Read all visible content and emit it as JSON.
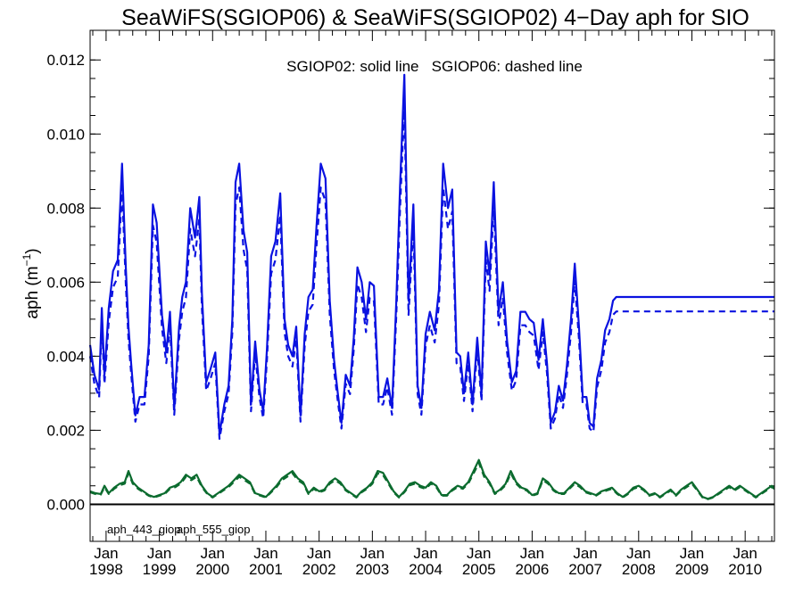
{
  "chart_data": {
    "type": "line",
    "title": "SeaWiFS(SGIOP06) & SeaWiFS(SGIOP02) 4−Day aph for SIO",
    "annotation": "SGIOP02: solid line   SGIOP06: dashed line",
    "ylabel_main": "aph (m",
    "ylabel_sup": "−1",
    "ylabel_close": ")",
    "ylim": [
      -0.001,
      0.0128
    ],
    "yticks": [
      "0.000",
      "0.002",
      "0.004",
      "0.006",
      "0.008",
      "0.010",
      "0.012"
    ],
    "ytick_values": [
      0,
      0.002,
      0.004,
      0.006,
      0.008,
      0.01,
      0.012
    ],
    "xlim": [
      1997.7,
      2010.55
    ],
    "xticks": [
      {
        "month": "Jan",
        "year": "1998",
        "x": 1998
      },
      {
        "month": "Jan",
        "year": "1999",
        "x": 1999
      },
      {
        "month": "Jan",
        "year": "2000",
        "x": 2000
      },
      {
        "month": "Jan",
        "year": "2001",
        "x": 2001
      },
      {
        "month": "Jan",
        "year": "2002",
        "x": 2002
      },
      {
        "month": "Jan",
        "year": "2003",
        "x": 2003
      },
      {
        "month": "Jan",
        "year": "2004",
        "x": 2004
      },
      {
        "month": "Jan",
        "year": "2005",
        "x": 2005
      },
      {
        "month": "Jan",
        "year": "2006",
        "x": 2006
      },
      {
        "month": "Jan",
        "year": "2007",
        "x": 2007
      },
      {
        "month": "Jan",
        "year": "2008",
        "x": 2008
      },
      {
        "month": "Jan",
        "year": "2009",
        "x": 2009
      },
      {
        "month": "Jan",
        "year": "2010",
        "x": 2010
      }
    ],
    "zero_line": true,
    "series": [
      {
        "name": "aph_443_giop",
        "color": "#0a12e0",
        "style": "solid",
        "x": [
          1997.7,
          1997.78,
          1997.87,
          1997.92,
          1997.97,
          1998.05,
          1998.13,
          1998.22,
          1998.3,
          1998.37,
          1998.42,
          1998.47,
          1998.55,
          1998.63,
          1998.72,
          1998.8,
          1998.88,
          1998.95,
          1999.05,
          1999.13,
          1999.2,
          1999.28,
          1999.37,
          1999.43,
          1999.5,
          1999.58,
          1999.67,
          1999.75,
          1999.8,
          1999.88,
          1999.95,
          2000.05,
          2000.13,
          2000.22,
          2000.3,
          2000.37,
          2000.43,
          2000.5,
          2000.58,
          2000.65,
          2000.72,
          2000.8,
          2000.88,
          2000.95,
          2001.02,
          2001.1,
          2001.18,
          2001.27,
          2001.35,
          2001.42,
          2001.5,
          2001.57,
          2001.65,
          2001.73,
          2001.8,
          2001.88,
          2001.95,
          2002.03,
          2002.12,
          2002.2,
          2002.28,
          2002.35,
          2002.42,
          2002.5,
          2002.58,
          2002.65,
          2002.72,
          2002.8,
          2002.88,
          2002.95,
          2003.03,
          2003.12,
          2003.2,
          2003.28,
          2003.37,
          2003.45,
          2003.52,
          2003.6,
          2003.68,
          2003.77,
          2003.85,
          2003.92,
          2004.0,
          2004.08,
          2004.17,
          2004.25,
          2004.33,
          2004.42,
          2004.5,
          2004.58,
          2004.65,
          2004.72,
          2004.8,
          2004.88,
          2004.97,
          2005.05,
          2005.13,
          2005.2,
          2005.28,
          2005.37,
          2005.45,
          2005.53,
          2005.62,
          2005.7,
          2005.78,
          2005.87,
          2005.95,
          2006.03,
          2006.12,
          2006.2,
          2006.28,
          2006.35,
          2006.43,
          2006.5,
          2006.58,
          2006.65,
          2006.73,
          2006.8,
          2006.88,
          2006.95,
          2007.02,
          2007.08,
          2007.15,
          2007.22,
          2007.3,
          2007.37,
          2007.45,
          2007.52,
          2007.58,
          2007.65,
          2007.72,
          2007.8,
          2007.88,
          2007.97,
          2008.05,
          2008.13,
          2008.22,
          2008.3,
          2008.38,
          2008.47,
          2008.55,
          2008.63,
          2008.72,
          2008.8,
          2008.88,
          2008.95,
          2009.03,
          2009.1,
          2009.18,
          2009.27,
          2009.35,
          2009.43,
          2009.52,
          2009.6,
          2009.68,
          2009.77,
          2009.85,
          2009.93,
          2010.02,
          2010.1,
          2010.18,
          2010.27,
          2010.35,
          2010.42,
          2010.48,
          2010.55
        ],
        "values": [
          0.0043,
          0.0035,
          0.0031,
          0.0053,
          0.0035,
          0.0053,
          0.0063,
          0.0066,
          0.0092,
          0.0064,
          0.0048,
          0.0038,
          0.0024,
          0.0029,
          0.0029,
          0.0043,
          0.0081,
          0.0076,
          0.0051,
          0.0041,
          0.0052,
          0.0026,
          0.0048,
          0.0056,
          0.006,
          0.008,
          0.0072,
          0.0083,
          0.0057,
          0.0033,
          0.0036,
          0.0041,
          0.0019,
          0.0027,
          0.0032,
          0.005,
          0.0087,
          0.0092,
          0.0074,
          0.0068,
          0.0027,
          0.0044,
          0.0031,
          0.0025,
          0.0042,
          0.0067,
          0.0071,
          0.0084,
          0.005,
          0.0043,
          0.004,
          0.0048,
          0.0024,
          0.0046,
          0.0056,
          0.0058,
          0.0075,
          0.0092,
          0.0088,
          0.0055,
          0.0039,
          0.003,
          0.0022,
          0.0035,
          0.0032,
          0.0045,
          0.0064,
          0.006,
          0.005,
          0.006,
          0.0059,
          0.0029,
          0.0029,
          0.0034,
          0.0026,
          0.0055,
          0.0086,
          0.0116,
          0.0055,
          0.0081,
          0.0032,
          0.0026,
          0.0046,
          0.0052,
          0.0047,
          0.0058,
          0.0092,
          0.008,
          0.0085,
          0.0041,
          0.004,
          0.003,
          0.0041,
          0.0027,
          0.0045,
          0.003,
          0.0071,
          0.0062,
          0.0087,
          0.0052,
          0.006,
          0.0044,
          0.0033,
          0.0036,
          0.0052,
          0.0052,
          0.005,
          0.0049,
          0.0039,
          0.005,
          0.0038,
          0.0022,
          0.0025,
          0.0032,
          0.0028,
          0.0037,
          0.005,
          0.0065,
          0.0048,
          0.0029,
          0.0029,
          0.0022,
          0.0021,
          0.0034,
          0.0039,
          0.0047,
          0.005,
          0.0055,
          0.0056,
          0.0056,
          0.0056,
          0.0056,
          0.0056,
          0.0056,
          0.0056,
          0.0056,
          0.0056,
          0.0056,
          0.0056,
          0.0056,
          0.0056,
          0.0056,
          0.0056,
          0.0056,
          0.0056,
          0.0056,
          0.0056,
          0.0056,
          0.0056,
          0.0056,
          0.0056,
          0.0056,
          0.0056,
          0.0056,
          0.0056,
          0.0056,
          0.0056,
          0.0056,
          0.0056,
          0.0056,
          0.0056,
          0.0056,
          0.0056,
          0.0056,
          0.0056,
          0.0056
        ]
      },
      {
        "name": "aph_555_giop",
        "color": "#0b6b2e",
        "style": "solid",
        "x": [
          1997.7,
          1997.8,
          1997.9,
          1997.97,
          1998.05,
          1998.15,
          1998.25,
          1998.35,
          1998.42,
          1998.5,
          1998.6,
          1998.7,
          1998.8,
          1998.9,
          1999.0,
          1999.1,
          1999.2,
          1999.3,
          1999.4,
          1999.5,
          1999.6,
          1999.7,
          1999.8,
          1999.9,
          2000.0,
          2000.1,
          2000.2,
          2000.3,
          2000.4,
          2000.5,
          2000.6,
          2000.7,
          2000.8,
          2000.9,
          2001.0,
          2001.1,
          2001.2,
          2001.3,
          2001.4,
          2001.5,
          2001.6,
          2001.7,
          2001.8,
          2001.9,
          2002.0,
          2002.1,
          2002.2,
          2002.3,
          2002.4,
          2002.5,
          2002.6,
          2002.7,
          2002.8,
          2002.9,
          2003.0,
          2003.1,
          2003.2,
          2003.3,
          2003.4,
          2003.5,
          2003.6,
          2003.7,
          2003.8,
          2003.9,
          2004.0,
          2004.1,
          2004.2,
          2004.3,
          2004.4,
          2004.5,
          2004.6,
          2004.7,
          2004.8,
          2004.9,
          2005.0,
          2005.1,
          2005.2,
          2005.3,
          2005.4,
          2005.5,
          2005.6,
          2005.7,
          2005.8,
          2005.9,
          2006.0,
          2006.1,
          2006.2,
          2006.3,
          2006.4,
          2006.5,
          2006.6,
          2006.7,
          2006.8,
          2006.9,
          2007.0,
          2007.1,
          2007.2,
          2007.3,
          2007.4,
          2007.5,
          2007.6,
          2007.7,
          2007.8,
          2007.9,
          2008.0,
          2008.1,
          2008.2,
          2008.3,
          2008.4,
          2008.5,
          2008.6,
          2008.7,
          2008.8,
          2008.9,
          2009.0,
          2009.1,
          2009.2,
          2009.3,
          2009.4,
          2009.5,
          2009.6,
          2009.7,
          2009.8,
          2009.9,
          2010.0,
          2010.1,
          2010.2,
          2010.3,
          2010.4,
          2010.5,
          2010.55
        ],
        "values": [
          0.00035,
          0.0003,
          0.00028,
          0.0005,
          0.0003,
          0.00045,
          0.00055,
          0.0006,
          0.0009,
          0.0006,
          0.00045,
          0.00035,
          0.00025,
          0.0002,
          0.00025,
          0.0003,
          0.00045,
          0.0005,
          0.0006,
          0.0008,
          0.0007,
          0.0008,
          0.0005,
          0.0003,
          0.0002,
          0.0003,
          0.0004,
          0.0005,
          0.00065,
          0.0008,
          0.0007,
          0.0006,
          0.0003,
          0.00025,
          0.0002,
          0.00035,
          0.0005,
          0.0007,
          0.0008,
          0.0009,
          0.0007,
          0.0006,
          0.0003,
          0.00045,
          0.00035,
          0.0004,
          0.0006,
          0.0007,
          0.0006,
          0.0004,
          0.0003,
          0.0002,
          0.00035,
          0.00045,
          0.0006,
          0.0009,
          0.00085,
          0.0006,
          0.00035,
          0.0002,
          0.00035,
          0.00055,
          0.0006,
          0.0005,
          0.00045,
          0.0006,
          0.0005,
          0.00025,
          0.00025,
          0.0004,
          0.0005,
          0.00045,
          0.0006,
          0.0009,
          0.0012,
          0.0008,
          0.0006,
          0.0003,
          0.0004,
          0.00055,
          0.0009,
          0.0006,
          0.00045,
          0.0004,
          0.00025,
          0.0003,
          0.0007,
          0.0006,
          0.0004,
          0.0003,
          0.0003,
          0.00045,
          0.0006,
          0.0005,
          0.00035,
          0.0003,
          0.00025,
          0.00035,
          0.0004,
          0.00045,
          0.0003,
          0.0002,
          0.0003,
          0.00045,
          0.0005,
          0.0004,
          0.00025,
          0.0003,
          0.0002,
          0.0003,
          0.0004,
          0.00025,
          0.0004,
          0.0005,
          0.0006,
          0.0004,
          0.0002,
          0.00015,
          0.0002,
          0.0003,
          0.0004,
          0.0005,
          0.0004,
          0.0005,
          0.0004,
          0.0003,
          0.0002,
          0.0003,
          0.0004,
          0.0005,
          0.00045
        ]
      }
    ],
    "legend": [
      {
        "label": "aph_443_giop",
        "color": "#0a12e0"
      },
      {
        "label": "aph_555_giop",
        "color": "#0b6b2e"
      }
    ]
  }
}
